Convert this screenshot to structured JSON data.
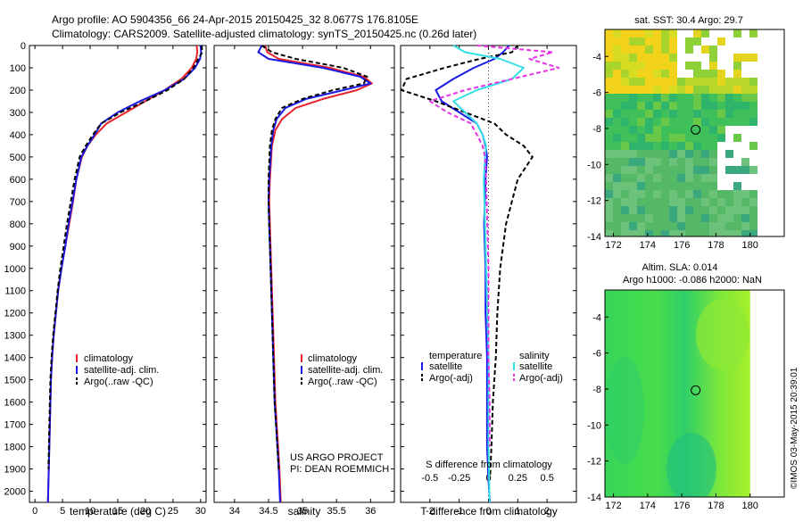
{
  "header": {
    "line1": "Argo profile: AO 5904356_66 24-Apr-2015 20150425_32 8.0677S 176.8105E",
    "line2": "Climatology: CARS2009. Satellite-adjusted climatology: synTS_20150425.nc (0.26d later)"
  },
  "colors": {
    "climatology": "#e8232a",
    "satellite": "#1a1ae6",
    "argo": "#000000",
    "salinity_sat": "#33e0e6",
    "salinity_argo": "#e633e6"
  },
  "legend_common": [
    "climatology",
    "satellite-adj. clim.",
    "Argo(..raw -QC)"
  ],
  "credit": {
    "line1": "US ARGO PROJECT",
    "line2": "PI: DEAN ROEMMICH"
  },
  "diff_legend": {
    "temperature_header": "temperature",
    "salinity_header": "salinity",
    "sat": "satellite",
    "argo": "Argo(-adj)"
  },
  "maps": {
    "sst_title": "sat. SST: 30.4 Argo: 29.7",
    "sla_title1": "Altim. SLA: 0.014",
    "sla_title2": "Argo h1000: -0.086 h2000: NaN",
    "xticks": [
      172,
      174,
      176,
      178,
      180
    ],
    "yticks": [
      -4,
      -6,
      -8,
      -10,
      -12,
      -14
    ],
    "xlim": [
      171.5,
      182
    ],
    "ylim": [
      -14,
      -2.5
    ],
    "argo_position": {
      "lon": 176.81,
      "lat": -8.07
    }
  },
  "stamp": "©IMOS 03-May-2015 20:39:01",
  "chart_data": [
    {
      "type": "line",
      "xlabel": "temperature (deg C)",
      "xlim": [
        -1,
        31
      ],
      "xticks": [
        0,
        5,
        10,
        15,
        20,
        25,
        30
      ],
      "ylim": [
        2050,
        0
      ],
      "yticks": [
        0,
        100,
        200,
        300,
        400,
        500,
        600,
        700,
        800,
        900,
        1000,
        1100,
        1200,
        1300,
        1400,
        1500,
        1600,
        1700,
        1800,
        1900,
        2000
      ],
      "series": [
        {
          "name": "climatology",
          "style": "solid",
          "color": "#e8232a",
          "x": [
            29.3,
            29.4,
            29.2,
            28.4,
            26.5,
            23.5,
            20,
            16.5,
            13,
            11,
            9.5,
            8.5,
            7.5,
            6.9,
            6.2,
            5.5,
            4.8,
            4.2,
            3.8,
            3.4,
            3.1,
            2.9,
            2.7,
            2.5,
            2.35
          ],
          "y": [
            0,
            30,
            60,
            100,
            150,
            200,
            250,
            300,
            350,
            400,
            450,
            500,
            600,
            700,
            800,
            900,
            1000,
            1100,
            1200,
            1300,
            1400,
            1500,
            1700,
            1900,
            2050
          ]
        },
        {
          "name": "satellite-adj. clim.",
          "style": "solid",
          "color": "#1a1ae6",
          "x": [
            30,
            30.1,
            29.9,
            29,
            27,
            23.5,
            19,
            15,
            12,
            10.8,
            9.5,
            8.4,
            7.5,
            6.8,
            6.1,
            5.5,
            4.8,
            4.2,
            3.8,
            3.4,
            3.1,
            2.9,
            2.7,
            2.5,
            2.35
          ],
          "y": [
            0,
            30,
            60,
            100,
            150,
            200,
            250,
            300,
            350,
            400,
            450,
            500,
            600,
            700,
            800,
            900,
            1000,
            1100,
            1200,
            1300,
            1400,
            1500,
            1700,
            1900,
            2050
          ]
        },
        {
          "name": "Argo(..raw -QC)",
          "style": "dashed",
          "color": "#000000",
          "x": [
            30.2,
            30.3,
            29.6,
            28.7,
            27,
            24,
            20,
            15.5,
            12,
            10.5,
            9.2,
            8.1,
            7.2,
            6.5,
            5.8,
            5.2,
            4.6,
            4.1,
            3.7,
            3.3,
            3.0,
            2.8,
            2.6,
            2.45
          ],
          "y": [
            0,
            30,
            60,
            100,
            150,
            200,
            250,
            300,
            350,
            400,
            450,
            500,
            600,
            700,
            800,
            900,
            1000,
            1100,
            1200,
            1300,
            1400,
            1500,
            1700,
            1900
          ]
        }
      ]
    },
    {
      "type": "line",
      "xlabel": "salinity",
      "xlim": [
        33.7,
        36.35
      ],
      "xticks": [
        34,
        34.5,
        35,
        35.5,
        36
      ],
      "ylim": [
        2050,
        0
      ],
      "series": [
        {
          "name": "climatology",
          "style": "solid",
          "color": "#e8232a",
          "x": [
            34.45,
            34.48,
            34.65,
            35.4,
            35.9,
            36.02,
            35.8,
            35.3,
            34.9,
            34.7,
            34.6,
            34.55,
            34.52,
            34.51,
            34.52,
            34.54,
            34.56,
            34.58,
            34.6,
            34.62,
            34.64,
            34.66,
            34.68
          ],
          "y": [
            0,
            30,
            60,
            100,
            140,
            170,
            200,
            240,
            280,
            330,
            380,
            450,
            600,
            700,
            800,
            1000,
            1200,
            1400,
            1600,
            1700,
            1800,
            1900,
            2050
          ]
        },
        {
          "name": "satellite-adj. clim.",
          "style": "solid",
          "color": "#1a1ae6",
          "x": [
            34.4,
            34.35,
            34.5,
            35.3,
            35.85,
            36.0,
            35.6,
            35.05,
            34.75,
            34.62,
            34.57,
            34.54,
            34.51,
            34.5,
            34.51,
            34.53,
            34.55,
            34.57,
            34.59,
            34.61,
            34.63,
            34.65,
            34.67
          ],
          "y": [
            0,
            30,
            60,
            100,
            140,
            170,
            200,
            240,
            280,
            330,
            380,
            450,
            600,
            700,
            800,
            1000,
            1200,
            1400,
            1600,
            1700,
            1800,
            1900,
            2050
          ]
        },
        {
          "name": "Argo(..raw -QC)",
          "style": "dashed",
          "color": "#000000",
          "x": [
            34.4,
            34.55,
            34.9,
            35.6,
            35.95,
            35.9,
            35.45,
            35.0,
            34.7,
            34.6,
            34.55,
            34.52,
            34.5,
            34.5,
            34.51,
            34.53,
            34.55,
            34.57,
            34.59,
            34.61,
            34.63,
            34.65
          ],
          "y": [
            0,
            30,
            60,
            100,
            140,
            170,
            200,
            240,
            280,
            330,
            380,
            450,
            600,
            700,
            800,
            1000,
            1200,
            1400,
            1600,
            1700,
            1800,
            1900
          ]
        }
      ]
    },
    {
      "type": "line",
      "xlabel": "T difference from climatology",
      "x2label": "S difference from climatology",
      "xlim": [
        -3,
        3
      ],
      "xticks": [
        -2,
        -1,
        0,
        1,
        2
      ],
      "x2ticks": [
        -0.5,
        -0.25,
        0,
        0.25,
        0.5
      ],
      "ylim": [
        2050,
        0
      ],
      "series": [
        {
          "name": "temperature satellite",
          "style": "solid",
          "color": "#1a1ae6",
          "x": [
            0.7,
            0.5,
            0.2,
            -0.5,
            -1.2,
            -1.8,
            -1.6,
            -1.0,
            -0.4,
            -0.2,
            -0.1,
            -0.05,
            -0.1,
            -0.15,
            -0.1,
            -0.1,
            -0.05,
            -0.05,
            -0.05,
            0,
            0.05
          ],
          "y": [
            0,
            30,
            60,
            100,
            150,
            200,
            250,
            300,
            350,
            400,
            450,
            500,
            600,
            800,
            1000,
            1200,
            1400,
            1600,
            1800,
            1950,
            2050
          ]
        },
        {
          "name": "temperature Argo(-adj)",
          "style": "dashed",
          "color": "#000000",
          "x": [
            1.0,
            0.8,
            -0.3,
            -1.5,
            -2.8,
            -3,
            -1.8,
            -0.8,
            0.2,
            0.6,
            1.2,
            1.5,
            1.0,
            0.6,
            0.4,
            0.3,
            0.25,
            0.15,
            0.1,
            0.05
          ],
          "y": [
            0,
            30,
            60,
            100,
            150,
            200,
            250,
            300,
            350,
            400,
            450,
            500,
            600,
            800,
            1000,
            1200,
            1400,
            1600,
            1800,
            1950
          ]
        },
        {
          "name": "salinity satellite",
          "style": "solid",
          "color": "#33e0e6",
          "x": [
            -0.3,
            -0.2,
            0.1,
            0.3,
            0.2,
            -0.1,
            -0.3,
            -0.2,
            -0.1,
            -0.05,
            -0.02,
            -0.03,
            -0.04,
            -0.03,
            -0.02,
            -0.01,
            0,
            0,
            0,
            0.01
          ],
          "y": [
            0,
            30,
            60,
            100,
            150,
            200,
            250,
            300,
            350,
            400,
            450,
            500,
            600,
            800,
            1000,
            1200,
            1400,
            1600,
            1800,
            2050
          ]
        },
        {
          "name": "salinity Argo(-adj)",
          "style": "dashed",
          "color": "#e633e6",
          "x": [
            -0.1,
            0.55,
            0.35,
            0.6,
            0.2,
            -0.2,
            -0.5,
            -0.35,
            -0.15,
            -0.1,
            -0.05,
            -0.03,
            -0.02,
            -0.01,
            0,
            0,
            0,
            0.01,
            0.01
          ],
          "y": [
            0,
            30,
            60,
            100,
            150,
            200,
            250,
            300,
            350,
            400,
            450,
            500,
            600,
            800,
            1000,
            1200,
            1400,
            1600,
            1800
          ]
        }
      ]
    }
  ]
}
